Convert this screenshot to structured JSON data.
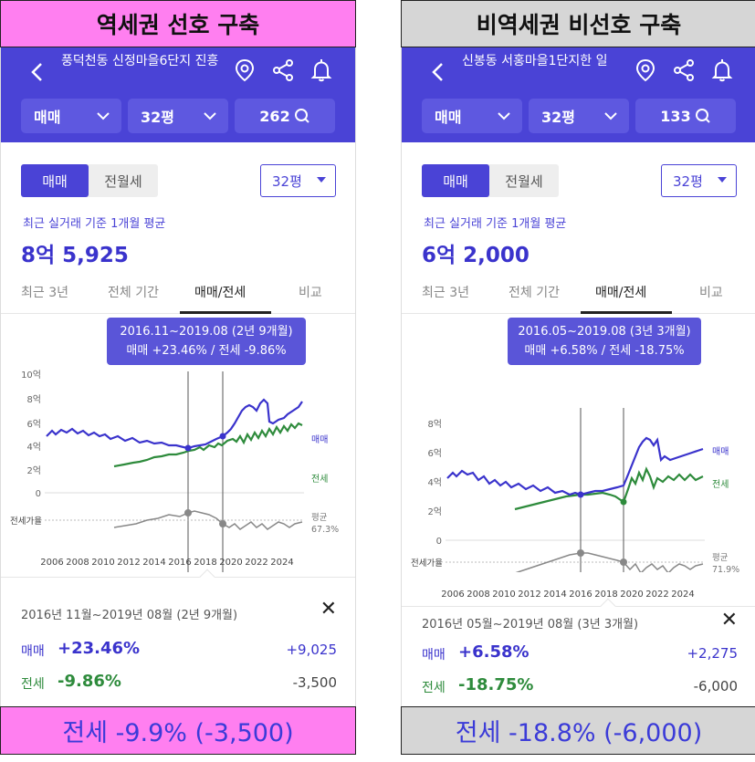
{
  "colors": {
    "header_bg": "#4a43d6",
    "pink_banner": "#ff7ff0",
    "gray_banner": "#d6d6d6",
    "sale_line": "#3a33cc",
    "jeonse_line": "#2e8b3c",
    "ratio_line": "#888888"
  },
  "icons": [
    "back-chevron-icon",
    "location-pin-icon",
    "share-icon",
    "bell-icon",
    "chevron-down-icon",
    "search-icon",
    "close-icon",
    "caret-down-icon"
  ],
  "left": {
    "banner": "역세권 선호 구축",
    "apartment_title": "풍덕천동 신정마을6단지 진흥",
    "filters": {
      "deal_type": "매매",
      "area": "32평",
      "count": "262"
    },
    "segment": {
      "on": "매매",
      "off": "전월세"
    },
    "size_select": "32평",
    "avg_caption": "최근 실거래 기준 1개월 평균",
    "avg_price": "8억 5,925",
    "tabs": [
      "최근 3년",
      "전체 기간",
      "매매/전세",
      "비교"
    ],
    "tooltip": {
      "line1": "2016.11~2019.08 (2년 9개월)",
      "line2": "매매 +23.46%  /  전세 -9.86%"
    },
    "chart_y_labels": [
      "10억",
      "8억",
      "6억",
      "4억",
      "2억",
      "0"
    ],
    "ratio_label": "전세가율",
    "avg_label": "평균",
    "avg_ratio": "67.3%",
    "series_labels": {
      "sale": "매매",
      "jeonse": "전세"
    },
    "x_labels": [
      "2006",
      "2008",
      "2010",
      "2012",
      "2014",
      "2016",
      "2018",
      "2020",
      "2022",
      "2024"
    ],
    "detail": {
      "period": "2016년 11월~2019년 08월 (2년 9개월)",
      "sale_label": "매매",
      "sale_pct": "+23.46%",
      "sale_amt": "+9,025",
      "jeon_label": "전세",
      "jeon_pct": "-9.86%",
      "jeon_amt": "-3,500"
    },
    "summary": "전세 -9.9% (-3,500)"
  },
  "right": {
    "banner": "비역세권 비선호 구축",
    "apartment_title": "신봉동 서홍마을1단지한 일",
    "filters": {
      "deal_type": "매매",
      "area": "32평",
      "count": "133"
    },
    "segment": {
      "on": "매매",
      "off": "전월세"
    },
    "size_select": "32평",
    "avg_caption": "최근 실거래 기준 1개월 평균",
    "avg_price": "6억 2,000",
    "tabs": [
      "최근 3년",
      "전체 기간",
      "매매/전세",
      "비교"
    ],
    "tooltip": {
      "line1": "2016.05~2019.08 (3년 3개월)",
      "line2": "매매 +6.58%  /  전세 -18.75%"
    },
    "chart_y_labels": [
      "8억",
      "6억",
      "4억",
      "2억",
      "0"
    ],
    "ratio_label": "전세가율",
    "avg_label": "평균",
    "avg_ratio": "71.9%",
    "series_labels": {
      "sale": "매매",
      "jeonse": "전세"
    },
    "x_labels": [
      "2006",
      "2008",
      "2010",
      "2012",
      "2014",
      "2016",
      "2018",
      "2020",
      "2022",
      "2024"
    ],
    "detail": {
      "period": "2016년 05월~2019년 08월 (3년 3개월)",
      "sale_label": "매매",
      "sale_pct": "+6.58%",
      "sale_amt": "+2,275",
      "jeon_label": "전세",
      "jeon_pct": "-18.75%",
      "jeon_amt": "-6,000"
    },
    "summary": "전세 -18.8% (-6,000)"
  }
}
